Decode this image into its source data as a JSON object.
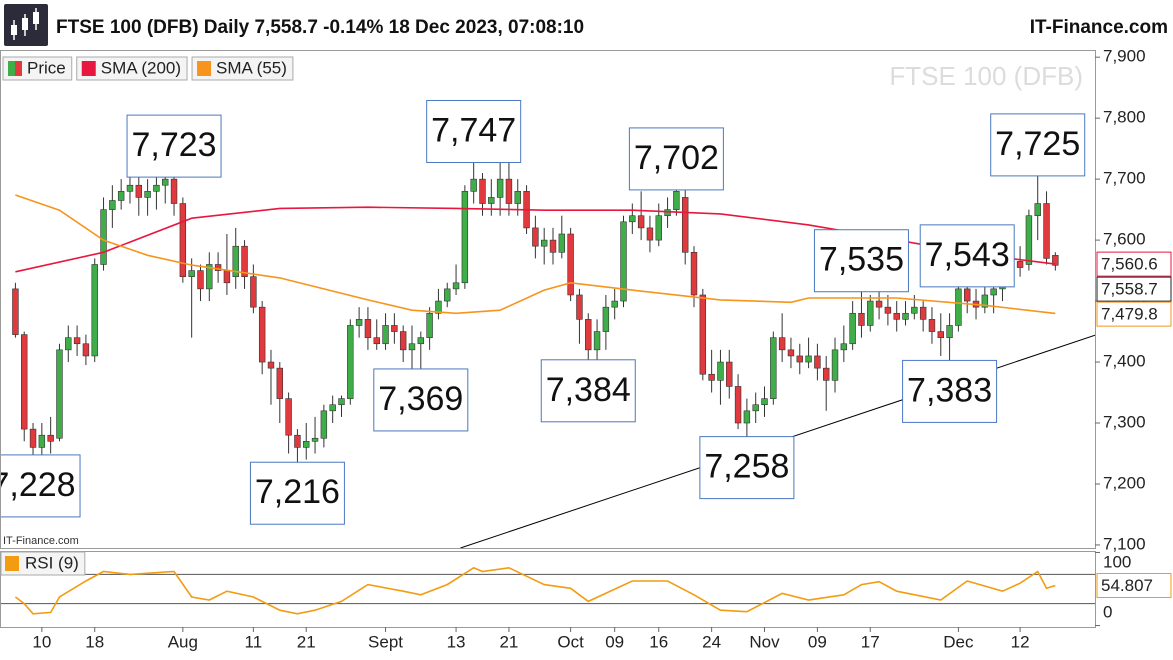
{
  "chart_data": [
    {
      "type": "candlestick",
      "title": "FTSE 100 (DFB) Daily 7,558.7 -0.14% 18 Dec 2023, 07:08:10",
      "source": "IT-Finance.com",
      "watermark": "FTSE 100 (DFB)",
      "categories": [
        null,
        null,
        null,
        "10",
        null,
        null,
        null,
        null,
        null,
        "18",
        null,
        null,
        null,
        null,
        null,
        null,
        null,
        null,
        null,
        "Aug",
        null,
        null,
        null,
        null,
        null,
        null,
        null,
        "11",
        null,
        null,
        null,
        null,
        null,
        "21",
        null,
        null,
        null,
        null,
        null,
        null,
        null,
        null,
        "Sept",
        null,
        null,
        null,
        null,
        null,
        null,
        null,
        "13",
        null,
        null,
        null,
        null,
        null,
        "21",
        null,
        null,
        null,
        null,
        null,
        null,
        "Oct",
        null,
        null,
        null,
        null,
        "09",
        null,
        null,
        null,
        null,
        "16",
        null,
        null,
        null,
        null,
        null,
        "24",
        null,
        null,
        null,
        null,
        null,
        "Nov",
        null,
        null,
        null,
        null,
        null,
        "09",
        null,
        null,
        null,
        null,
        null,
        "17",
        null,
        null,
        null,
        null,
        null,
        null,
        null,
        null,
        null,
        "Dec",
        null,
        null,
        null,
        null,
        null,
        null,
        "12",
        null,
        null,
        null,
        null
      ],
      "series": [
        {
          "name": "Price",
          "up_color": "#3fae49",
          "down_color": "#e0393e",
          "color": "#333333",
          "last_label": "7,558.7",
          "open": [
            7520,
            7445,
            7290,
            7260,
            7280,
            7275,
            7420,
            7440,
            7430,
            7410,
            7560,
            7650,
            7665,
            7680,
            7690,
            7670,
            7680,
            7690,
            7700,
            7660,
            7540,
            7550,
            7520,
            7560,
            7550,
            7540,
            7590,
            7540,
            7490,
            7400,
            7390,
            7340,
            7280,
            7260,
            7270,
            7275,
            7320,
            7330,
            7340,
            7460,
            7470,
            7440,
            7430,
            7460,
            7450,
            7420,
            7430,
            7440,
            7480,
            7500,
            7520,
            7530,
            7680,
            7700,
            7660,
            7670,
            7700,
            7660,
            7680,
            7620,
            7590,
            7600,
            7580,
            7610,
            7510,
            7470,
            7420,
            7450,
            7490,
            7500,
            7630,
            7640,
            7620,
            7600,
            7640,
            7650,
            7670,
            7580,
            7510,
            7380,
            7370,
            7400,
            7360,
            7300,
            7320,
            7330,
            7340,
            7440,
            7420,
            7410,
            7400,
            7410,
            7390,
            7370,
            7420,
            7430,
            7480,
            7460,
            7500,
            7490,
            7480,
            7470,
            7480,
            7490,
            7470,
            7450,
            7440,
            7460,
            7520,
            7500,
            7490,
            7510,
            7520,
            7560,
            7565,
            7560,
            7640,
            7660,
            7575
          ],
          "high": [
            7530,
            7450,
            7300,
            7300,
            7310,
            7430,
            7460,
            7460,
            7445,
            7570,
            7670,
            7690,
            7700,
            7710,
            7710,
            7700,
            7720,
            7710,
            7723,
            7670,
            7570,
            7560,
            7580,
            7580,
            7610,
            7620,
            7600,
            7560,
            7500,
            7420,
            7400,
            7350,
            7290,
            7300,
            7310,
            7330,
            7345,
            7345,
            7470,
            7490,
            7490,
            7470,
            7480,
            7480,
            7460,
            7460,
            7450,
            7490,
            7520,
            7530,
            7560,
            7690,
            7747,
            7710,
            7700,
            7730,
            7740,
            7700,
            7690,
            7640,
            7620,
            7620,
            7640,
            7620,
            7520,
            7480,
            7470,
            7510,
            7520,
            7640,
            7660,
            7680,
            7640,
            7660,
            7670,
            7702,
            7690,
            7590,
            7520,
            7420,
            7420,
            7420,
            7380,
            7340,
            7350,
            7360,
            7450,
            7480,
            7440,
            7430,
            7440,
            7430,
            7410,
            7440,
            7460,
            7500,
            7535,
            7510,
            7520,
            7510,
            7500,
            7500,
            7510,
            7500,
            7490,
            7480,
            7480,
            7530,
            7543,
            7520,
            7530,
            7530,
            7570,
            7580,
            7590,
            7650,
            7725,
            7680,
            7580
          ],
          "low": [
            7440,
            7270,
            7228,
            7240,
            7250,
            7270,
            7400,
            7410,
            7395,
            7400,
            7550,
            7620,
            7650,
            7660,
            7640,
            7640,
            7650,
            7660,
            7640,
            7530,
            7440,
            7500,
            7500,
            7530,
            7510,
            7520,
            7520,
            7480,
            7380,
            7330,
            7300,
            7250,
            7216,
            7240,
            7250,
            7260,
            7300,
            7310,
            7330,
            7440,
            7420,
            7420,
            7420,
            7430,
            7400,
            7380,
            7369,
            7420,
            7470,
            7490,
            7510,
            7520,
            7660,
            7640,
            7640,
            7640,
            7640,
            7640,
            7610,
            7570,
            7560,
            7560,
            7570,
            7500,
            7430,
            7384,
            7400,
            7420,
            7470,
            7490,
            7610,
            7600,
            7580,
            7590,
            7620,
            7640,
            7560,
            7490,
            7370,
            7350,
            7330,
            7340,
            7290,
            7258,
            7300,
            7310,
            7330,
            7400,
            7390,
            7380,
            7390,
            7370,
            7320,
            7350,
            7400,
            7420,
            7440,
            7450,
            7470,
            7460,
            7450,
            7460,
            7470,
            7450,
            7430,
            7410,
            7383,
            7450,
            7480,
            7470,
            7480,
            7480,
            7500,
            7540,
            7540,
            7550,
            7600,
            7560,
            7550
          ],
          "close": [
            7445,
            7290,
            7260,
            7280,
            7270,
            7420,
            7440,
            7430,
            7410,
            7560,
            7650,
            7665,
            7680,
            7690,
            7670,
            7680,
            7690,
            7700,
            7660,
            7540,
            7550,
            7520,
            7560,
            7550,
            7530,
            7590,
            7540,
            7490,
            7400,
            7390,
            7340,
            7280,
            7260,
            7270,
            7275,
            7320,
            7330,
            7340,
            7460,
            7470,
            7440,
            7430,
            7460,
            7450,
            7420,
            7430,
            7440,
            7480,
            7500,
            7520,
            7530,
            7680,
            7700,
            7660,
            7670,
            7700,
            7660,
            7680,
            7620,
            7590,
            7600,
            7580,
            7610,
            7510,
            7470,
            7420,
            7450,
            7490,
            7500,
            7630,
            7640,
            7620,
            7600,
            7640,
            7650,
            7680,
            7580,
            7510,
            7380,
            7370,
            7400,
            7360,
            7300,
            7320,
            7330,
            7340,
            7440,
            7420,
            7410,
            7400,
            7410,
            7390,
            7370,
            7420,
            7430,
            7480,
            7460,
            7500,
            7490,
            7480,
            7470,
            7480,
            7490,
            7470,
            7450,
            7440,
            7460,
            7520,
            7500,
            7490,
            7510,
            7520,
            7560,
            7565,
            7555,
            7640,
            7660,
            7570,
            7558.7
          ]
        },
        {
          "name": "SMA (200)",
          "color": "#e8173f",
          "last_label": "7,560.6",
          "x": [
            0,
            10,
            20,
            30,
            40,
            50,
            60,
            70,
            80,
            90,
            100,
            110,
            118
          ],
          "values": [
            7548,
            7580,
            7636,
            7652,
            7654,
            7652,
            7649,
            7649,
            7643,
            7625,
            7600,
            7575,
            7560.6
          ]
        },
        {
          "name": "SMA (55)",
          "color": "#f7941d",
          "last_label": "7,479.8",
          "x": [
            0,
            5,
            10,
            15,
            20,
            30,
            40,
            45,
            50,
            55,
            60,
            63,
            70,
            80,
            88,
            90,
            100,
            110,
            118
          ],
          "values": [
            7674,
            7649,
            7600,
            7575,
            7559,
            7538,
            7502,
            7485,
            7480,
            7485,
            7518,
            7530,
            7518,
            7502,
            7498,
            7505,
            7505,
            7493,
            7479.8
          ]
        }
      ],
      "trendline": {
        "x": [
          50.5,
          122.5
        ],
        "values": [
          7095,
          7444
        ],
        "color": "#000000"
      },
      "annotations": [
        {
          "label": "7,228",
          "value": 7228,
          "index": 2,
          "placement": "below"
        },
        {
          "label": "7,723",
          "value": 7723,
          "index": 18,
          "placement": "above"
        },
        {
          "label": "7,216",
          "value": 7216,
          "index": 32,
          "placement": "below"
        },
        {
          "label": "7,369",
          "value": 7369,
          "index": 46,
          "placement": "below"
        },
        {
          "label": "7,747",
          "value": 7747,
          "index": 52,
          "placement": "above"
        },
        {
          "label": "7,384",
          "value": 7384,
          "index": 65,
          "placement": "below"
        },
        {
          "label": "7,702",
          "value": 7702,
          "index": 75,
          "placement": "above"
        },
        {
          "label": "7,258",
          "value": 7258,
          "index": 83,
          "placement": "below"
        },
        {
          "label": "7,535",
          "value": 7535,
          "index": 96,
          "placement": "above"
        },
        {
          "label": "7,383",
          "value": 7383,
          "index": 106,
          "placement": "below"
        },
        {
          "label": "7,543",
          "value": 7543,
          "index": 108,
          "placement": "above"
        },
        {
          "label": "7,725",
          "value": 7725,
          "index": 116,
          "placement": "above"
        }
      ],
      "ylim": [
        7095,
        7920
      ],
      "yticks": [
        {
          "value": 7100,
          "label": "7,100"
        },
        {
          "value": 7200,
          "label": "7,200"
        },
        {
          "value": 7300,
          "label": "7,300"
        },
        {
          "value": 7400,
          "label": "7,400"
        },
        {
          "value": 7500,
          "label": "7,500"
        },
        {
          "value": 7600,
          "label": "7,600"
        },
        {
          "value": 7700,
          "label": "7,700"
        },
        {
          "value": 7800,
          "label": "7,800"
        },
        {
          "value": 7900,
          "label": "7,900"
        }
      ]
    },
    {
      "type": "line",
      "series": [
        {
          "name": "RSI (9)",
          "color": "#f39c12",
          "last_label": "54.807",
          "x": [
            0,
            1,
            2,
            4,
            5,
            8,
            10,
            13,
            18,
            20,
            22,
            24,
            27,
            30,
            32,
            34,
            37,
            40,
            44,
            46,
            49,
            52,
            53,
            56,
            60,
            63,
            65,
            70,
            74,
            77,
            80,
            83,
            87,
            90,
            94,
            96,
            98,
            100,
            105,
            108,
            112,
            114,
            116,
            117,
            118
          ],
          "values": [
            39,
            30,
            16,
            18,
            39,
            61,
            74,
            70,
            74,
            39,
            35,
            47,
            39,
            21,
            16,
            21,
            33,
            56,
            47,
            42,
            56,
            79,
            74,
            79,
            56,
            51,
            33,
            61,
            61,
            42,
            21,
            19,
            44,
            35,
            42,
            56,
            60,
            47,
            35,
            61,
            47,
            58,
            74,
            51,
            54.807
          ]
        }
      ],
      "levels": [
        30,
        70
      ],
      "ylim": [
        -2,
        102
      ],
      "yticks": [
        0,
        100
      ]
    }
  ]
}
